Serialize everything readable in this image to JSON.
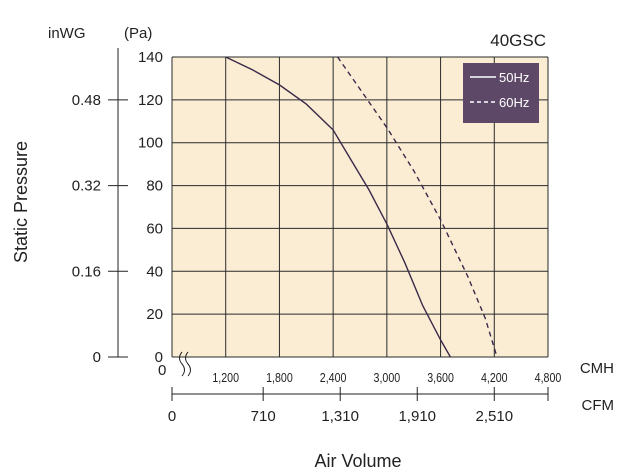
{
  "chart_data": {
    "type": "line",
    "title": "40GSC",
    "xlabel": "Air Volume",
    "ylabel": "Static Pressure",
    "x_unit_primary": "CMH",
    "x_unit_secondary": "CFM",
    "y_unit_primary": "(Pa)",
    "y_unit_secondary": "inWG",
    "xlim": [
      600,
      4800
    ],
    "ylim": [
      0,
      140
    ],
    "grid": true,
    "legend_position": "top-right",
    "x_ticks": [
      {
        "value": 1200,
        "label": "1,200"
      },
      {
        "value": 1800,
        "label": "1,800"
      },
      {
        "value": 2400,
        "label": "2,400"
      },
      {
        "value": 3000,
        "label": "3,000"
      },
      {
        "value": 3600,
        "label": "3,600"
      },
      {
        "value": 4200,
        "label": "4,200"
      },
      {
        "value": 4800,
        "label": "4,800"
      }
    ],
    "x_origin_label": "0",
    "y_ticks": [
      {
        "value": 0,
        "label": "0"
      },
      {
        "value": 20,
        "label": "20"
      },
      {
        "value": 40,
        "label": "40"
      },
      {
        "value": 60,
        "label": "60"
      },
      {
        "value": 80,
        "label": "80"
      },
      {
        "value": 100,
        "label": "100"
      },
      {
        "value": 120,
        "label": "120"
      },
      {
        "value": 140,
        "label": "140"
      }
    ],
    "y_secondary_ticks": [
      {
        "value": 0,
        "label": "0"
      },
      {
        "value": 40,
        "label": "0.16"
      },
      {
        "value": 80,
        "label": "0.32"
      },
      {
        "value": 120,
        "label": "0.48"
      }
    ],
    "x_secondary_ticks": [
      {
        "value": 0,
        "label": "0"
      },
      {
        "value": 710,
        "label": "710"
      },
      {
        "value": 1310,
        "label": "1,310"
      },
      {
        "value": 1910,
        "label": "1,910"
      },
      {
        "value": 2510,
        "label": "2,510"
      }
    ],
    "series": [
      {
        "name": "50Hz",
        "style": "solid",
        "color": "#3a2a4a",
        "x": [
          1200,
          1500,
          1800,
          2100,
          2400,
          2600,
          2800,
          3000,
          3200,
          3400,
          3600,
          3710
        ],
        "y": [
          140,
          134,
          127,
          118,
          106,
          92,
          78,
          62,
          44,
          24,
          8,
          0
        ]
      },
      {
        "name": "60Hz",
        "style": "dashed",
        "color": "#3a2a4a",
        "x": [
          2450,
          2700,
          3000,
          3300,
          3600,
          3900,
          4100,
          4230
        ],
        "y": [
          140,
          125,
          107,
          87,
          64,
          38,
          18,
          0
        ]
      }
    ]
  },
  "colors": {
    "plot_background": "#fbedd4",
    "grid": "#2a2a2a",
    "legend_background": "#5d4967",
    "legend_text": "#ffffff"
  }
}
